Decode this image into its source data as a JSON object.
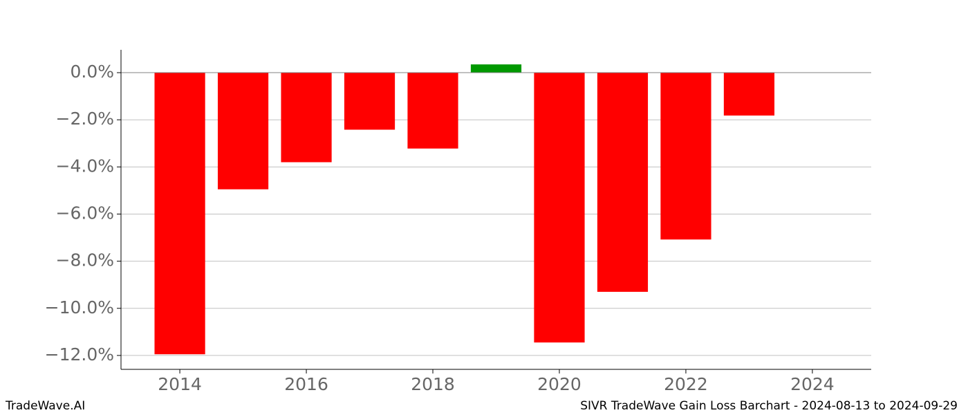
{
  "chart_data": {
    "type": "bar",
    "x": [
      2014,
      2015,
      2016,
      2017,
      2018,
      2019,
      2020,
      2021,
      2022,
      2023
    ],
    "values": [
      -11.95,
      -4.95,
      -3.8,
      -2.42,
      -3.22,
      0.35,
      -11.45,
      -9.3,
      -7.08,
      -1.82
    ],
    "colors": [
      "#ff0000",
      "#ff0000",
      "#ff0000",
      "#ff0000",
      "#ff0000",
      "#009900",
      "#ff0000",
      "#ff0000",
      "#ff0000",
      "#ff0000"
    ],
    "xlim": [
      2013.07,
      2024.93
    ],
    "xticks": [
      2014,
      2016,
      2018,
      2020,
      2022,
      2024
    ],
    "ylim": [
      -12.59,
      0.97
    ],
    "yticks": [
      {
        "value": 0,
        "label": "0.0%"
      },
      {
        "value": -2,
        "label": "−2.0%"
      },
      {
        "value": -4,
        "label": "−4.0%"
      },
      {
        "value": -6,
        "label": "−6.0%"
      },
      {
        "value": -8,
        "label": "−8.0%"
      },
      {
        "value": -10,
        "label": "−10.0%"
      },
      {
        "value": -12,
        "label": "−12.0%"
      }
    ],
    "grid": true,
    "footer_left": "TradeWave.AI",
    "footer_right": "SIVR TradeWave Gain Loss Barchart - 2024-08-13 to 2024-09-29"
  }
}
